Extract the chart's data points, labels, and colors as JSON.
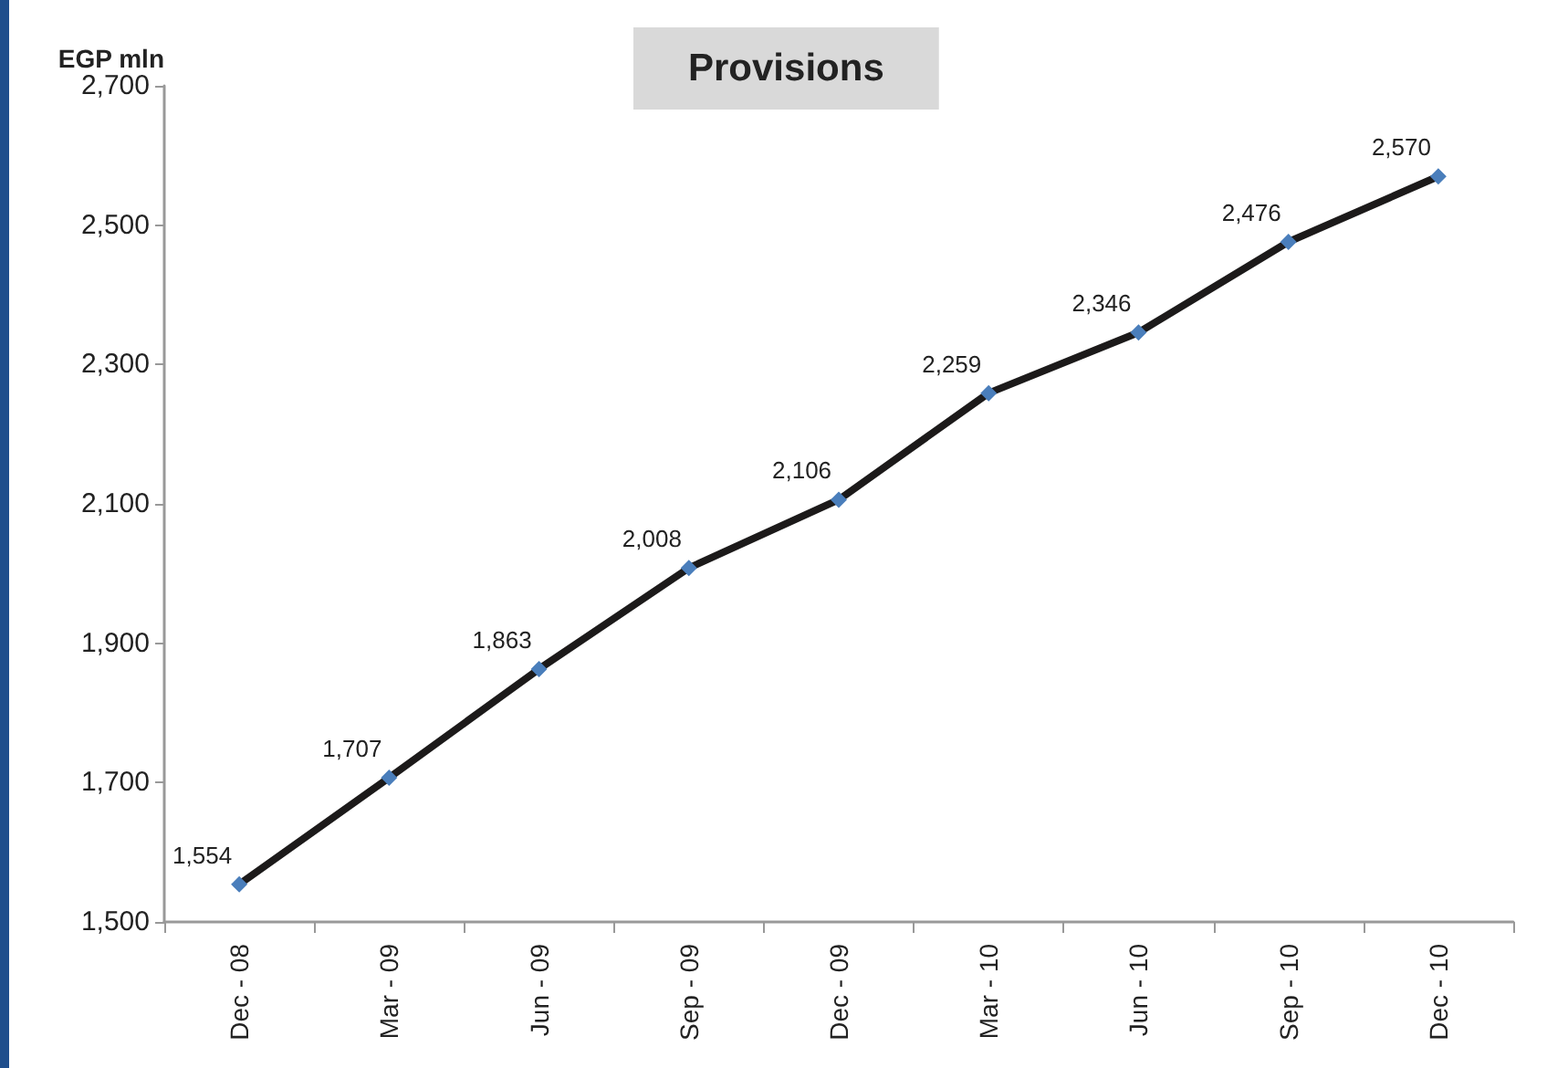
{
  "chart_data": {
    "type": "line",
    "title": "Provisions",
    "ylabel": "EGP mln",
    "categories": [
      "Dec - 08",
      "Mar - 09",
      "Jun - 09",
      "Sep - 09",
      "Dec - 09",
      "Mar - 10",
      "Jun - 10",
      "Sep - 10",
      "Dec - 10"
    ],
    "series": [
      {
        "color": "#1c1a1a",
        "colors": [
          "#4a7ebb",
          "#4a7ebb",
          "#4a7ebb",
          "#4a7ebb",
          "#4a7ebb",
          "#4a7ebb",
          "#4a7ebb",
          "#4a7ebb",
          "#4a7ebb"
        ],
        "values": [
          1554,
          1707,
          1863,
          2008,
          2106,
          2259,
          2346,
          2476,
          2570
        ],
        "value_labels": [
          "1,554",
          "1,707",
          "1,863",
          "2,008",
          "2,106",
          "2,259",
          "2,346",
          "2,476",
          "2,570"
        ]
      }
    ],
    "ylim": [
      1500,
      2700
    ],
    "yticks": [
      {
        "value": 1500,
        "label": "1,500"
      },
      {
        "value": 1700,
        "label": "1,700"
      },
      {
        "value": 1900,
        "label": "1,900"
      },
      {
        "value": 2100,
        "label": "2,100"
      },
      {
        "value": 2300,
        "label": "2,300"
      },
      {
        "value": 2500,
        "label": "2,500"
      },
      {
        "value": 2700,
        "label": "2,700"
      }
    ],
    "marker": "diamond",
    "line_style": "solid"
  }
}
